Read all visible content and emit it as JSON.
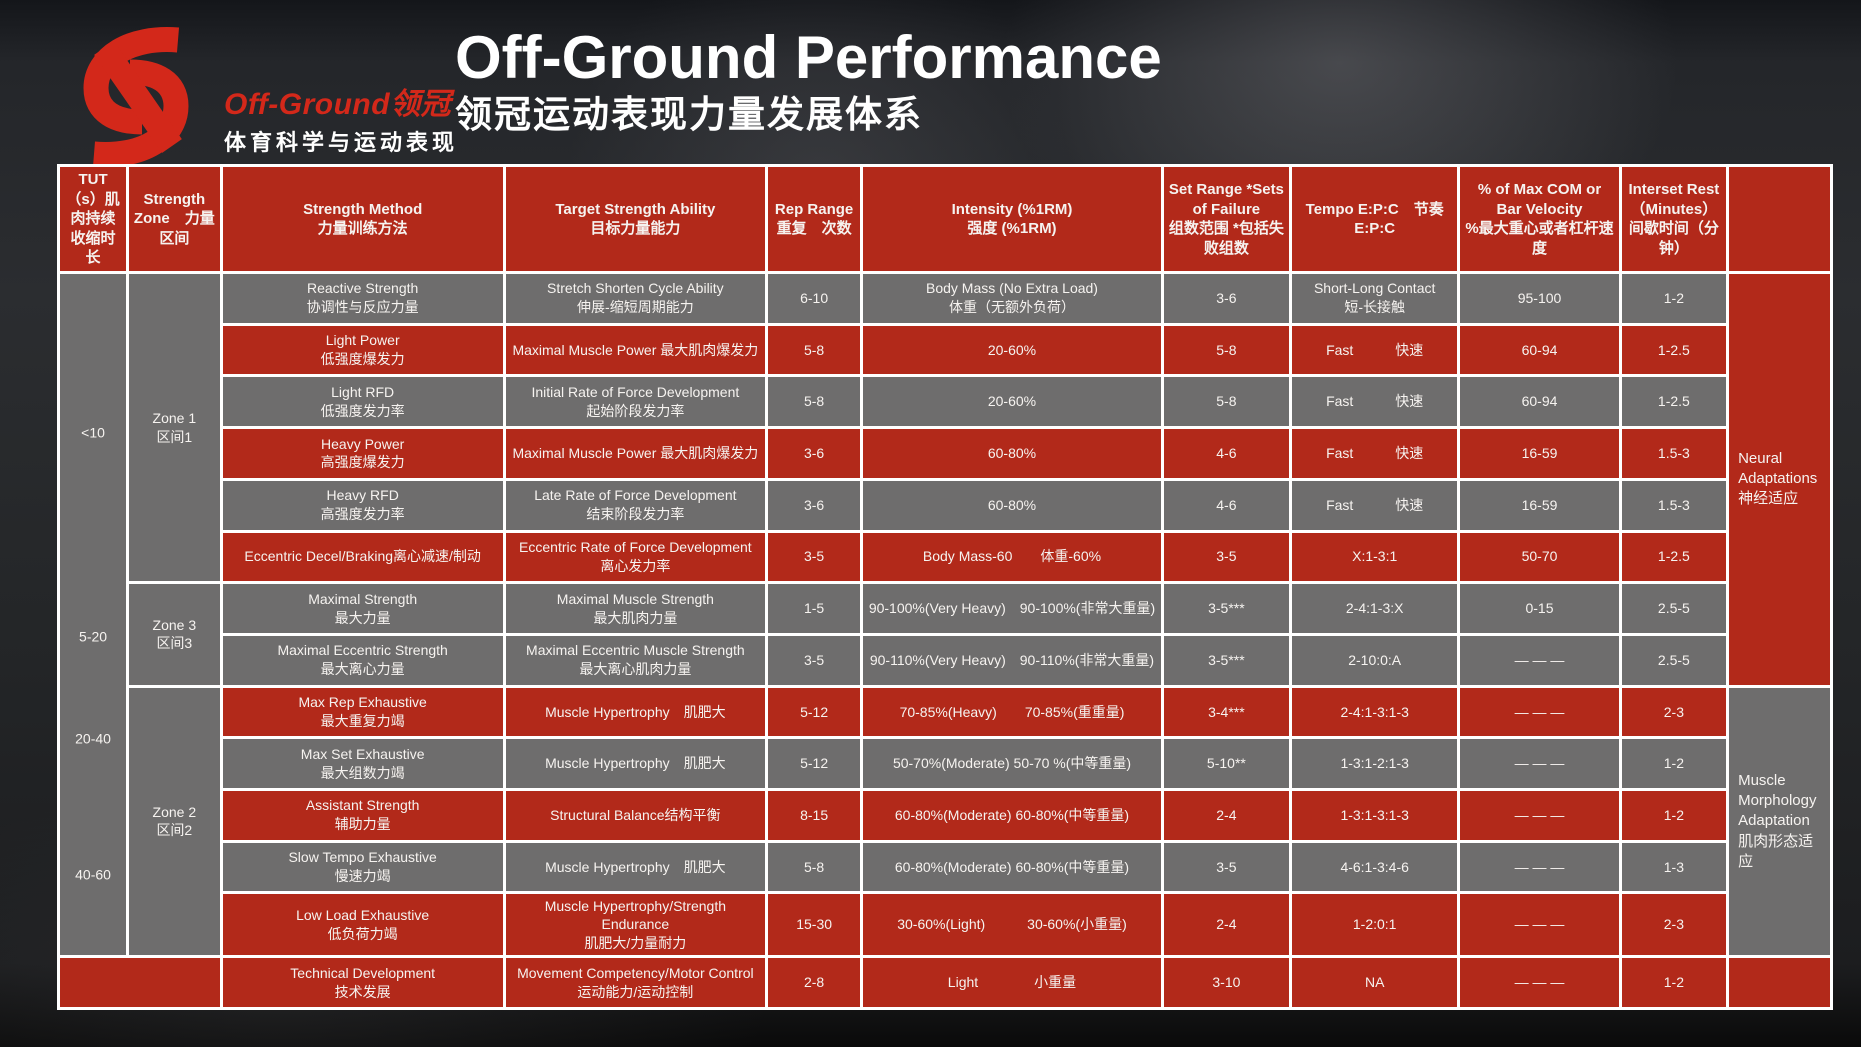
{
  "colors": {
    "red": "#b2291a",
    "gray": "#6e6d6d",
    "logo_red": "#d3281a",
    "grid_line": "#ffffff",
    "text": "#f6f3f0"
  },
  "brand": {
    "name": "Off-Ground领冠",
    "tagline": "体育科学与运动表现"
  },
  "header": {
    "title": "Off-Ground Performance",
    "subtitle": "领冠运动表现力量发展体系"
  },
  "table": {
    "header_labels": [
      "TUT（s）肌肉持续收缩时长",
      "Strength Zone　力量区间",
      "Strength Method\n力量训练方法",
      "Target Strength Ability\n目标力量能力",
      "Rep Range\n重复　次数",
      "Intensity (%1RM)\n强度 (%1RM)",
      "Set Range *Sets of Failure\n组数范围 *包括失败组数",
      "Tempo E:P:C　节奏E:P:C",
      "% of Max COM or Bar Velocity\n%最大重心或者杠杆速度",
      "Interset Rest\n（Minutes）\n间歇时间（分钟）",
      ""
    ],
    "tut_labels": [
      "<10",
      "5-20",
      "20-40",
      "40-60"
    ],
    "zones": [
      {
        "label": "Zone 1\n区间1",
        "rows": 6
      },
      {
        "label": "Zone 3\n区间3",
        "rows": 2
      },
      {
        "label": "Zone 2\n区间2",
        "rows": 5
      }
    ],
    "adaptations": [
      {
        "label": "Neural Adaptations\n神经适应",
        "rows": 8,
        "color": "red"
      },
      {
        "label": "Muscle Morphology Adaptation\n肌肉形态适应",
        "rows": 5,
        "color": "gray"
      },
      {
        "label": "",
        "rows": 1,
        "color": "red"
      }
    ],
    "rows": [
      {
        "color": "gray",
        "cells": [
          "Reactive Strength\n协调性与反应力量",
          "Stretch Shorten Cycle Ability\n伸展-缩短周期能力",
          "6-10",
          "Body Mass (No Extra Load)\n体重（无额外负荷）",
          "3-6",
          "Short-Long Contact\n短-长接触",
          "95-100",
          "1-2"
        ]
      },
      {
        "color": "red",
        "cells": [
          "Light Power\n低强度爆发力",
          "Maximal Muscle Power 最大肌肉爆发力",
          "5-8",
          "20-60%",
          "5-8",
          "Fast　　　快速",
          "60-94",
          "1-2.5"
        ]
      },
      {
        "color": "gray",
        "cells": [
          "Light RFD\n低强度发力率",
          "Initial Rate of Force Development\n起始阶段发力率",
          "5-8",
          "20-60%",
          "5-8",
          "Fast　　　快速",
          "60-94",
          "1-2.5"
        ]
      },
      {
        "color": "red",
        "cells": [
          "Heavy Power\n高强度爆发力",
          "Maximal Muscle Power 最大肌肉爆发力",
          "3-6",
          "60-80%",
          "4-6",
          "Fast　　　快速",
          "16-59",
          "1.5-3"
        ]
      },
      {
        "color": "gray",
        "cells": [
          "Heavy RFD\n高强度发力率",
          "Late Rate of Force Development\n结束阶段发力率",
          "3-6",
          "60-80%",
          "4-6",
          "Fast　　　快速",
          "16-59",
          "1.5-3"
        ]
      },
      {
        "color": "red",
        "cells": [
          "Eccentric Decel/Braking离心减速/制动",
          "Eccentric Rate of Force Development\n离心发力率",
          "3-5",
          "Body Mass-60　　体重-60%",
          "3-5",
          "X:1-3:1",
          "50-70",
          "1-2.5"
        ]
      },
      {
        "color": "gray",
        "cells": [
          "Maximal Strength\n最大力量",
          "Maximal Muscle Strength\n最大肌肉力量",
          "1-5",
          "90-100%(Very Heavy)　90-100%(非常大重量)",
          "3-5***",
          "2-4:1-3:X",
          "0-15",
          "2.5-5"
        ]
      },
      {
        "color": "gray",
        "cells": [
          "Maximal Eccentric Strength\n最大离心力量",
          "Maximal Eccentric Muscle Strength\n最大离心肌肉力量",
          "3-5",
          "90-110%(Very Heavy)　90-110%(非常大重量)",
          "3-5***",
          "2-10:0:A",
          "— — —",
          "2.5-5"
        ]
      },
      {
        "color": "red",
        "cells": [
          "Max Rep Exhaustive\n最大重复力竭",
          "Muscle Hypertrophy　肌肥大",
          "5-12",
          "70-85%(Heavy)　　70-85%(重重量)",
          "3-4***",
          "2-4:1-3:1-3",
          "— — —",
          "2-3"
        ]
      },
      {
        "color": "gray",
        "cells": [
          "Max Set Exhaustive\n最大组数力竭",
          "Muscle Hypertrophy　肌肥大",
          "5-12",
          "50-70%(Moderate) 50-70 %(中等重量)",
          "5-10**",
          "1-3:1-2:1-3",
          "— — —",
          "1-2"
        ]
      },
      {
        "color": "red",
        "cells": [
          "Assistant Strength\n辅助力量",
          "Structural Balance结构平衡",
          "8-15",
          "60-80%(Moderate) 60-80%(中等重量)",
          "2-4",
          "1-3:1-3:1-3",
          "— — —",
          "1-2"
        ]
      },
      {
        "color": "gray",
        "cells": [
          "Slow Tempo Exhaustive\n慢速力竭",
          "Muscle Hypertrophy　肌肥大",
          "5-8",
          "60-80%(Moderate) 60-80%(中等重量)",
          "3-5",
          "4-6:1-3:4-6",
          "— — —",
          "1-3"
        ]
      },
      {
        "color": "red",
        "cells": [
          "Low Load Exhaustive\n低负荷力竭",
          "Muscle Hypertrophy/Strength Endurance\n肌肥大/力量耐力",
          "15-30",
          "30-60%(Light)　　　30-60%(小重量)",
          "2-4",
          "1-2:0:1",
          "— — —",
          "2-3"
        ]
      },
      {
        "color": "red",
        "cells": [
          "Technical Development\n技术发展",
          "Movement Competency/Motor Control\n运动能力/运动控制",
          "2-8",
          "Light　　　　小重量",
          "3-10",
          "NA",
          "— — —",
          "1-2"
        ]
      }
    ]
  }
}
